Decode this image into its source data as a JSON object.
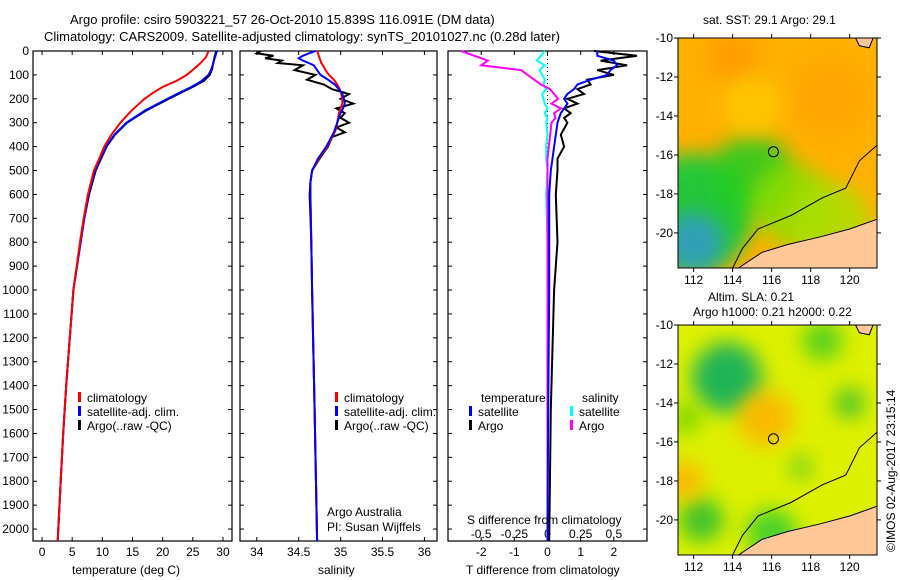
{
  "header": {
    "title_line1": "Argo profile: csiro 5903221_57 26-Oct-2010 15.839S 116.091E (DM data)",
    "title_line2": "Climatology: CARS2009. Satellite-adjusted climatology: synTS_20101027.nc (0.28d later)"
  },
  "colors": {
    "climatology": "#ff0000",
    "satellite": "#0000ff",
    "argo": "#000000",
    "sal_satellite": "#00ffff",
    "sal_argo": "#ff00ff",
    "land": "#ffc896"
  },
  "chart_data": [
    {
      "type": "line",
      "id": "temperature",
      "xlabel": "temperature (deg C)",
      "ylabel": "",
      "xlim": [
        -1.5,
        31.5
      ],
      "ylim": [
        2050,
        0
      ],
      "xticks": [
        0,
        5,
        10,
        15,
        20,
        25,
        30
      ],
      "yticks": [
        0,
        100,
        200,
        300,
        400,
        500,
        600,
        700,
        800,
        900,
        1000,
        1100,
        1200,
        1300,
        1400,
        1500,
        1600,
        1700,
        1800,
        1900,
        2000
      ],
      "legend": [
        "climatology",
        "satellite-adj. clim.",
        "Argo(..raw -QC)"
      ],
      "depth": [
        0,
        25,
        50,
        75,
        100,
        125,
        150,
        175,
        200,
        250,
        300,
        350,
        400,
        450,
        500,
        600,
        700,
        800,
        1000,
        1200,
        1400,
        1600,
        1800,
        2050
      ],
      "series": [
        {
          "name": "climatology",
          "values": [
            27.6,
            27.2,
            26.3,
            25.2,
            24.0,
            22.3,
            20.0,
            18.4,
            17.0,
            14.8,
            13.0,
            11.5,
            10.3,
            9.5,
            8.6,
            7.6,
            6.9,
            6.3,
            5.2,
            4.6,
            4.0,
            3.5,
            3.1,
            2.6
          ]
        },
        {
          "name": "satellite-adj. clim.",
          "values": [
            29.0,
            28.7,
            28.4,
            28.1,
            27.6,
            26.5,
            24.8,
            22.8,
            20.8,
            17.0,
            14.0,
            12.0,
            10.6,
            9.7,
            8.8,
            7.7,
            7.0,
            6.4,
            5.2,
            4.6,
            4.0,
            3.5,
            3.1,
            2.6
          ]
        },
        {
          "name": "Argo(..raw -QC)",
          "values": [
            28.9,
            28.6,
            28.4,
            28.2,
            27.8,
            26.8,
            25.0,
            23.0,
            21.0,
            17.2,
            14.1,
            12.1,
            10.7,
            9.8,
            8.9,
            7.8,
            7.0,
            6.4,
            5.2,
            4.6,
            4.0,
            3.5,
            3.1,
            2.6
          ]
        }
      ]
    },
    {
      "type": "line",
      "id": "salinity",
      "xlabel": "salinity",
      "xlim": [
        33.8,
        36.15
      ],
      "ylim": [
        2050,
        0
      ],
      "xticks": [
        34,
        34.5,
        35,
        35.5,
        36
      ],
      "legend": [
        "climatology",
        "satellite-adj. clim.",
        "Argo(..raw -QC)"
      ],
      "annotation": [
        "Argo Australia",
        "PI: Susan Wijffels"
      ],
      "depth": [
        0,
        10,
        20,
        30,
        40,
        50,
        60,
        80,
        100,
        120,
        140,
        160,
        180,
        200,
        220,
        240,
        260,
        280,
        300,
        320,
        340,
        360,
        400,
        450,
        500,
        550,
        600,
        800,
        1000,
        1500,
        2050
      ],
      "series": [
        {
          "name": "climatology",
          "values": [
            34.72,
            34.73,
            34.74,
            34.75,
            34.76,
            34.77,
            34.79,
            34.82,
            34.86,
            34.92,
            34.96,
            34.99,
            35.01,
            35.02,
            35.02,
            35.0,
            34.98,
            34.97,
            34.96,
            34.95,
            34.93,
            34.9,
            34.84,
            34.74,
            34.66,
            34.64,
            34.64,
            34.65,
            34.66,
            34.69,
            34.72
          ]
        },
        {
          "name": "satellite-adj. clim.",
          "values": [
            34.7,
            34.62,
            34.55,
            34.5,
            34.55,
            34.62,
            34.68,
            34.72,
            34.76,
            34.85,
            34.93,
            34.98,
            35.02,
            35.04,
            35.05,
            35.03,
            35.0,
            34.98,
            34.96,
            34.94,
            34.92,
            34.89,
            34.83,
            34.73,
            34.66,
            34.64,
            34.64,
            34.65,
            34.66,
            34.69,
            34.72
          ]
        },
        {
          "name": "Argo(..raw -QC)",
          "values": [
            34.05,
            34.0,
            34.2,
            34.1,
            34.3,
            34.25,
            34.55,
            34.45,
            34.7,
            34.6,
            34.8,
            34.9,
            35.1,
            35.0,
            35.15,
            34.95,
            35.05,
            35.0,
            35.1,
            34.95,
            35.05,
            34.9,
            34.85,
            34.75,
            34.66,
            34.64,
            34.63,
            34.65,
            34.66,
            34.69,
            34.72
          ]
        }
      ]
    },
    {
      "type": "line",
      "id": "differences",
      "xlabel": "T difference from climatology",
      "xlabel2": "S difference from climatology",
      "xlim": [
        -3,
        3
      ],
      "xlim_S": [
        -0.75,
        0.75
      ],
      "xticks": [
        -2,
        -1,
        0,
        1,
        2
      ],
      "xticks_S": [
        -0.5,
        -0.25,
        0,
        0.25,
        0.5
      ],
      "legend_temperature": {
        "title": "temperature",
        "items": [
          "satellite",
          "Argo"
        ]
      },
      "legend_salinity": {
        "title": "salinity",
        "items": [
          "satellite",
          "Argo"
        ]
      },
      "depth": [
        0,
        20,
        40,
        60,
        80,
        100,
        120,
        140,
        160,
        180,
        200,
        220,
        240,
        260,
        280,
        300,
        350,
        400,
        450,
        500,
        600,
        800,
        1000,
        1500,
        2050
      ],
      "series": [
        {
          "name": "T satellite",
          "values": [
            1.5,
            1.5,
            2.0,
            2.1,
            1.9,
            1.8,
            1.3,
            0.9,
            0.8,
            0.6,
            0.5,
            0.6,
            0.5,
            0.4,
            0.35,
            0.3,
            0.25,
            0.2,
            0.15,
            0.1,
            0.05,
            0.05,
            0.05,
            0.02,
            0.0
          ]
        },
        {
          "name": "T Argo",
          "values": [
            1.4,
            2.7,
            1.6,
            2.4,
            1.5,
            2.0,
            1.2,
            1.3,
            0.9,
            1.1,
            0.6,
            0.9,
            0.5,
            0.7,
            0.5,
            0.6,
            0.4,
            0.5,
            0.3,
            0.3,
            0.25,
            0.3,
            0.2,
            0.1,
            0.05
          ]
        },
        {
          "name": "S satellite",
          "values": [
            -0.02,
            -0.05,
            -0.08,
            -0.02,
            -0.06,
            -0.04,
            -0.02,
            -0.03,
            -0.01,
            -0.04,
            -0.03,
            -0.02,
            0.0,
            -0.02,
            0.0,
            -0.01,
            0.0,
            -0.01,
            -0.01,
            0.0,
            -0.01,
            0.0,
            0.0,
            0.0,
            0.0
          ]
        },
        {
          "name": "S Argo",
          "values": [
            -0.65,
            -0.55,
            -0.45,
            -0.5,
            -0.2,
            -0.15,
            -0.1,
            -0.05,
            0.02,
            0.05,
            0.08,
            0.03,
            0.1,
            0.05,
            0.06,
            0.03,
            0.02,
            0.01,
            0.0,
            0.0,
            0.0,
            0.0,
            0.0,
            0.0,
            0.0
          ]
        }
      ]
    },
    {
      "type": "heatmap",
      "id": "sst_map",
      "title": "sat. SST: 29.1  Argo: 29.1",
      "xlim": [
        111.2,
        121.4
      ],
      "ylim": [
        -21.8,
        -10
      ],
      "xticks": [
        112,
        114,
        116,
        118,
        120
      ],
      "yticks": [
        -10,
        -12,
        -14,
        -16,
        -18,
        -20
      ],
      "marker": {
        "lon": 116.091,
        "lat": -15.839
      }
    },
    {
      "type": "heatmap",
      "id": "sla_map",
      "title": "Altim. SLA: 0.21",
      "subtitle": "Argo h1000: 0.21 h2000: 0.22",
      "xlim": [
        111.2,
        121.4
      ],
      "ylim": [
        -21.8,
        -10
      ],
      "xticks": [
        112,
        114,
        116,
        118,
        120
      ],
      "yticks": [
        -10,
        -12,
        -14,
        -16,
        -18,
        -20
      ],
      "marker": {
        "lon": 116.091,
        "lat": -15.839
      }
    }
  ],
  "footer": {
    "credit": "©IMOS 02-Aug-2017 23:15:14"
  }
}
